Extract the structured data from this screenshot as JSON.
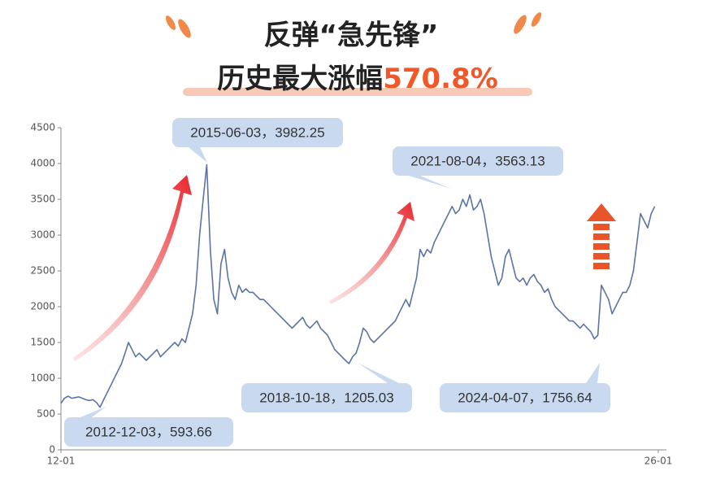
{
  "chart_data": {
    "type": "line",
    "title": "反弹“急先锋”",
    "subtitle": "历史最大涨幅",
    "subtitle_highlight": "570.8%",
    "x": [
      "2012-01",
      "2012-02",
      "2012-03",
      "2012-04",
      "2012-05",
      "2012-06",
      "2012-07",
      "2012-08",
      "2012-09",
      "2012-10",
      "2012-11",
      "2012-12",
      "2013-01",
      "2013-02",
      "2013-03",
      "2013-04",
      "2013-05",
      "2013-06",
      "2013-07",
      "2013-08",
      "2013-09",
      "2013-10",
      "2013-11",
      "2013-12",
      "2014-01",
      "2014-02",
      "2014-03",
      "2014-04",
      "2014-05",
      "2014-06",
      "2014-07",
      "2014-08",
      "2014-09",
      "2014-10",
      "2014-11",
      "2014-12",
      "2015-01",
      "2015-02",
      "2015-03",
      "2015-04",
      "2015-05",
      "2015-06",
      "2015-07",
      "2015-08",
      "2015-09",
      "2015-10",
      "2015-11",
      "2015-12",
      "2016-01",
      "2016-02",
      "2016-03",
      "2016-04",
      "2016-05",
      "2016-06",
      "2016-07",
      "2016-08",
      "2016-09",
      "2016-10",
      "2016-11",
      "2016-12",
      "2017-01",
      "2017-02",
      "2017-03",
      "2017-04",
      "2017-05",
      "2017-06",
      "2017-07",
      "2017-08",
      "2017-09",
      "2017-10",
      "2017-11",
      "2017-12",
      "2018-01",
      "2018-02",
      "2018-03",
      "2018-04",
      "2018-05",
      "2018-06",
      "2018-07",
      "2018-08",
      "2018-09",
      "2018-10",
      "2018-11",
      "2018-12",
      "2019-01",
      "2019-02",
      "2019-03",
      "2019-04",
      "2019-05",
      "2019-06",
      "2019-07",
      "2019-08",
      "2019-09",
      "2019-10",
      "2019-11",
      "2019-12",
      "2020-01",
      "2020-02",
      "2020-03",
      "2020-04",
      "2020-05",
      "2020-06",
      "2020-07",
      "2020-08",
      "2020-09",
      "2020-10",
      "2020-11",
      "2020-12",
      "2021-01",
      "2021-02",
      "2021-03",
      "2021-04",
      "2021-05",
      "2021-06",
      "2021-07",
      "2021-08",
      "2021-09",
      "2021-10",
      "2021-11",
      "2021-12",
      "2022-01",
      "2022-02",
      "2022-03",
      "2022-04",
      "2022-05",
      "2022-06",
      "2022-07",
      "2022-08",
      "2022-09",
      "2022-10",
      "2022-11",
      "2022-12",
      "2023-01",
      "2023-02",
      "2023-03",
      "2023-04",
      "2023-05",
      "2023-06",
      "2023-07",
      "2023-08",
      "2023-09",
      "2023-10",
      "2023-11",
      "2023-12",
      "2024-01",
      "2024-02",
      "2024-03",
      "2024-04",
      "2024-05",
      "2024-06",
      "2024-07",
      "2024-08",
      "2024-09",
      "2024-10",
      "2024-11",
      "2024-12",
      "2025-01",
      "2025-02",
      "2025-03",
      "2025-04",
      "2025-05",
      "2025-06",
      "2025-07",
      "2025-08",
      "2025-09",
      "2025-10",
      "2025-11",
      "2025-12"
    ],
    "series": [
      {
        "color": "#5b73a6",
        "values": [
          650,
          720,
          750,
          720,
          730,
          740,
          720,
          700,
          690,
          700,
          660,
          594,
          700,
          800,
          900,
          1000,
          1100,
          1200,
          1350,
          1500,
          1400,
          1300,
          1350,
          1300,
          1250,
          1300,
          1350,
          1400,
          1300,
          1350,
          1400,
          1450,
          1500,
          1450,
          1550,
          1500,
          1700,
          1900,
          2300,
          3000,
          3500,
          3982,
          2800,
          2100,
          1900,
          2600,
          2800,
          2400,
          2200,
          2100,
          2300,
          2200,
          2250,
          2200,
          2200,
          2150,
          2100,
          2100,
          2050,
          2000,
          1950,
          1900,
          1850,
          1800,
          1750,
          1700,
          1750,
          1800,
          1850,
          1750,
          1700,
          1750,
          1800,
          1700,
          1650,
          1600,
          1500,
          1400,
          1350,
          1300,
          1250,
          1205,
          1300,
          1350,
          1500,
          1700,
          1650,
          1550,
          1500,
          1550,
          1600,
          1650,
          1700,
          1750,
          1800,
          1900,
          2000,
          2100,
          2000,
          2200,
          2400,
          2800,
          2700,
          2800,
          2750,
          2900,
          3000,
          3100,
          3200,
          3300,
          3400,
          3300,
          3350,
          3500,
          3400,
          3563,
          3350,
          3400,
          3500,
          3300,
          3000,
          2700,
          2500,
          2300,
          2400,
          2700,
          2800,
          2600,
          2400,
          2350,
          2400,
          2300,
          2400,
          2450,
          2350,
          2300,
          2200,
          2250,
          2100,
          2000,
          1950,
          1900,
          1850,
          1800,
          1800,
          1750,
          1700,
          1756,
          1700,
          1650,
          1550,
          1600,
          2300,
          2200,
          2100,
          1900,
          2000,
          2100,
          2200,
          2200,
          2300,
          2500,
          2900,
          3300,
          3200,
          3100,
          3300,
          3400
        ]
      }
    ],
    "xlim": [
      "2012-01",
      "2026-01"
    ],
    "xticks": [
      {
        "value": "2012-01",
        "label": "12-01"
      },
      {
        "value": "2026-01",
        "label": "26-01"
      }
    ],
    "ylim": [
      0,
      4500
    ],
    "yticks": [
      0,
      500,
      1000,
      1500,
      2000,
      2500,
      3000,
      3500,
      4000,
      4500
    ],
    "annotations": [
      "2015-06-03，3982.25",
      "2021-08-04，3563.13",
      "2018-10-18，1205.03",
      "2024-04-07，1756.64",
      "2012-12-03，593.66"
    ]
  }
}
